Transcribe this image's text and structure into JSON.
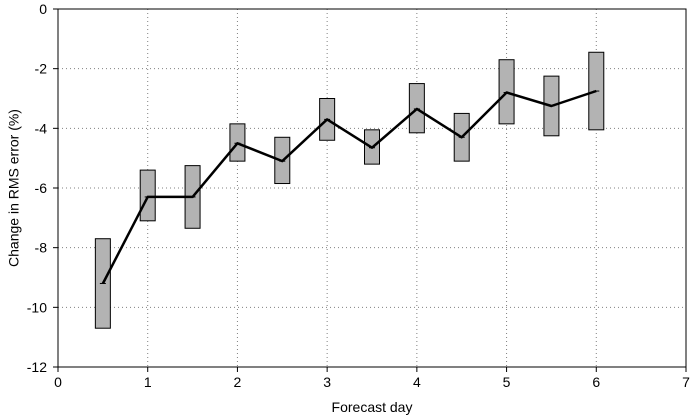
{
  "chart_data": {
    "type": "line",
    "title": "",
    "xlabel": "Forecast day",
    "ylabel": "Change in RMS error (%)",
    "xlim": [
      0,
      7
    ],
    "ylim": [
      -12,
      0
    ],
    "xticks": [
      0,
      1,
      2,
      3,
      4,
      5,
      6,
      7
    ],
    "yticks": [
      0,
      -2,
      -4,
      -6,
      -8,
      -10,
      -12
    ],
    "xtick_labels": [
      "0",
      "1",
      "2",
      "3",
      "4",
      "5",
      "6",
      "7"
    ],
    "ytick_labels": [
      "0",
      "-2",
      "-4",
      "-6",
      "-8",
      "-10",
      "-12"
    ],
    "grid": true,
    "legend": "none",
    "colors": {
      "line": "#000000",
      "box_fill": "#b3b3b3",
      "box_stroke": "#000000",
      "grid": "#808080",
      "axis": "#000000"
    },
    "series": [
      {
        "x": [
          0.5,
          1.0,
          1.5,
          2.0,
          2.5,
          3.0,
          3.5,
          4.0,
          4.5,
          5.0,
          5.5,
          6.0
        ],
        "values": [
          -9.2,
          -6.3,
          -6.3,
          -4.5,
          -5.1,
          -3.7,
          -4.65,
          -3.35,
          -4.3,
          -2.8,
          -3.25,
          -2.75
        ]
      }
    ],
    "ranges": {
      "x": [
        0.5,
        1.0,
        1.5,
        2.0,
        2.5,
        3.0,
        3.5,
        4.0,
        4.5,
        5.0,
        5.5,
        6.0
      ],
      "low": [
        -10.7,
        -7.1,
        -7.35,
        -5.1,
        -5.85,
        -4.4,
        -5.2,
        -4.15,
        -5.1,
        -3.85,
        -4.25,
        -4.05
      ],
      "high": [
        -7.7,
        -5.4,
        -5.25,
        -3.85,
        -4.3,
        -3.0,
        -4.05,
        -2.5,
        -3.5,
        -1.7,
        -2.25,
        -1.45
      ]
    }
  }
}
